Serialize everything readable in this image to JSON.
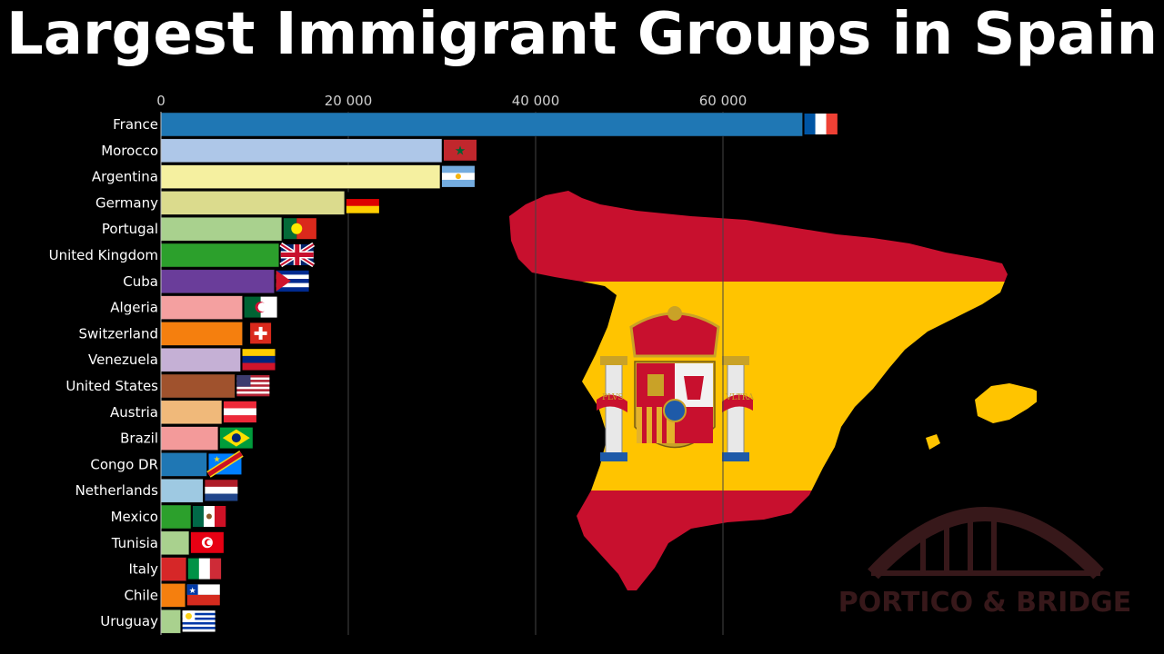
{
  "title": "Largest Immigrant Groups in Spain",
  "watermark": {
    "text": "PORTICO & BRIDGE",
    "color": "#3a1a1c"
  },
  "map": {
    "red": "#c8102e",
    "yellow": "#ffc400",
    "banner_left": "PLVS",
    "banner_right": "VLTRA"
  },
  "chart_data": {
    "type": "bar",
    "orientation": "horizontal",
    "title": "Largest Immigrant Groups in Spain",
    "xlim": [
      0,
      70000
    ],
    "xticks": [
      0,
      20000,
      40000,
      60000
    ],
    "xtick_labels": [
      "0",
      "20 000",
      "40 000",
      "60 000"
    ],
    "grid": true,
    "categories": [
      "France",
      "Morocco",
      "Argentina",
      "Germany",
      "Portugal",
      "United Kingdom",
      "Cuba",
      "Algeria",
      "Switzerland",
      "Venezuela",
      "United States",
      "Austria",
      "Brazil",
      "Congo DR",
      "Netherlands",
      "Mexico",
      "Tunisia",
      "Italy",
      "Chile",
      "Uruguay"
    ],
    "values": [
      68500,
      30000,
      29800,
      19600,
      12900,
      12600,
      12100,
      8700,
      8700,
      8500,
      7900,
      6500,
      6100,
      4900,
      4500,
      3200,
      3000,
      2700,
      2600,
      2100
    ],
    "colors": [
      "#1f77b4",
      "#aec7e8",
      "#f5f0a0",
      "#dbdb8d",
      "#a9d18e",
      "#2ca02c",
      "#6a3d9a",
      "#f4a0a0",
      "#f57f0e",
      "#c5b0d5",
      "#a0522d",
      "#f0b97a",
      "#f39a9a",
      "#1f77b4",
      "#9ec9e2",
      "#2ca02c",
      "#a9d18e",
      "#d62728",
      "#f57f0e",
      "#a9d18e"
    ],
    "flags": [
      "france",
      "morocco",
      "argentina",
      "germany",
      "portugal",
      "uk",
      "cuba",
      "algeria",
      "switzerland",
      "venezuela",
      "usa",
      "austria",
      "brazil",
      "congo",
      "netherlands",
      "mexico",
      "tunisia",
      "italy",
      "chile",
      "uruguay"
    ]
  }
}
